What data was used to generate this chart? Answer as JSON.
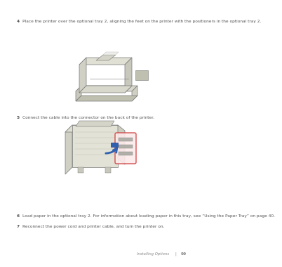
{
  "bg_color": "#ffffff",
  "text_color": "#555555",
  "footer_color": "#888888",
  "step4_bullet": "4",
  "step4_text": "Place the printer over the optional tray 2, aligning the feet on the printer with the positioners in the optional tray 2.",
  "step5_bullet": "5",
  "step5_text": "Connect the cable into the connector on the back of the printer.",
  "step6_bullet": "6",
  "step6_text": "Load paper in the optional tray 2. For information about loading paper in this tray, see “Using the Paper Tray” on page 40.",
  "step7_bullet": "7",
  "step7_text": "Reconnect the power cord and printer cable, and turn the printer on.",
  "footer_text": "Installing Options",
  "footer_sep": "|",
  "footer_page": "99",
  "text_fontsize": 4.2,
  "footer_fontsize": 3.8,
  "highlight_edge": "#d04040",
  "highlight_face": "#fceaea",
  "blue_color": "#3060b0",
  "line_color": "#aaaaaa",
  "printer_face": "#e8e8e0",
  "printer_edge": "#777777"
}
